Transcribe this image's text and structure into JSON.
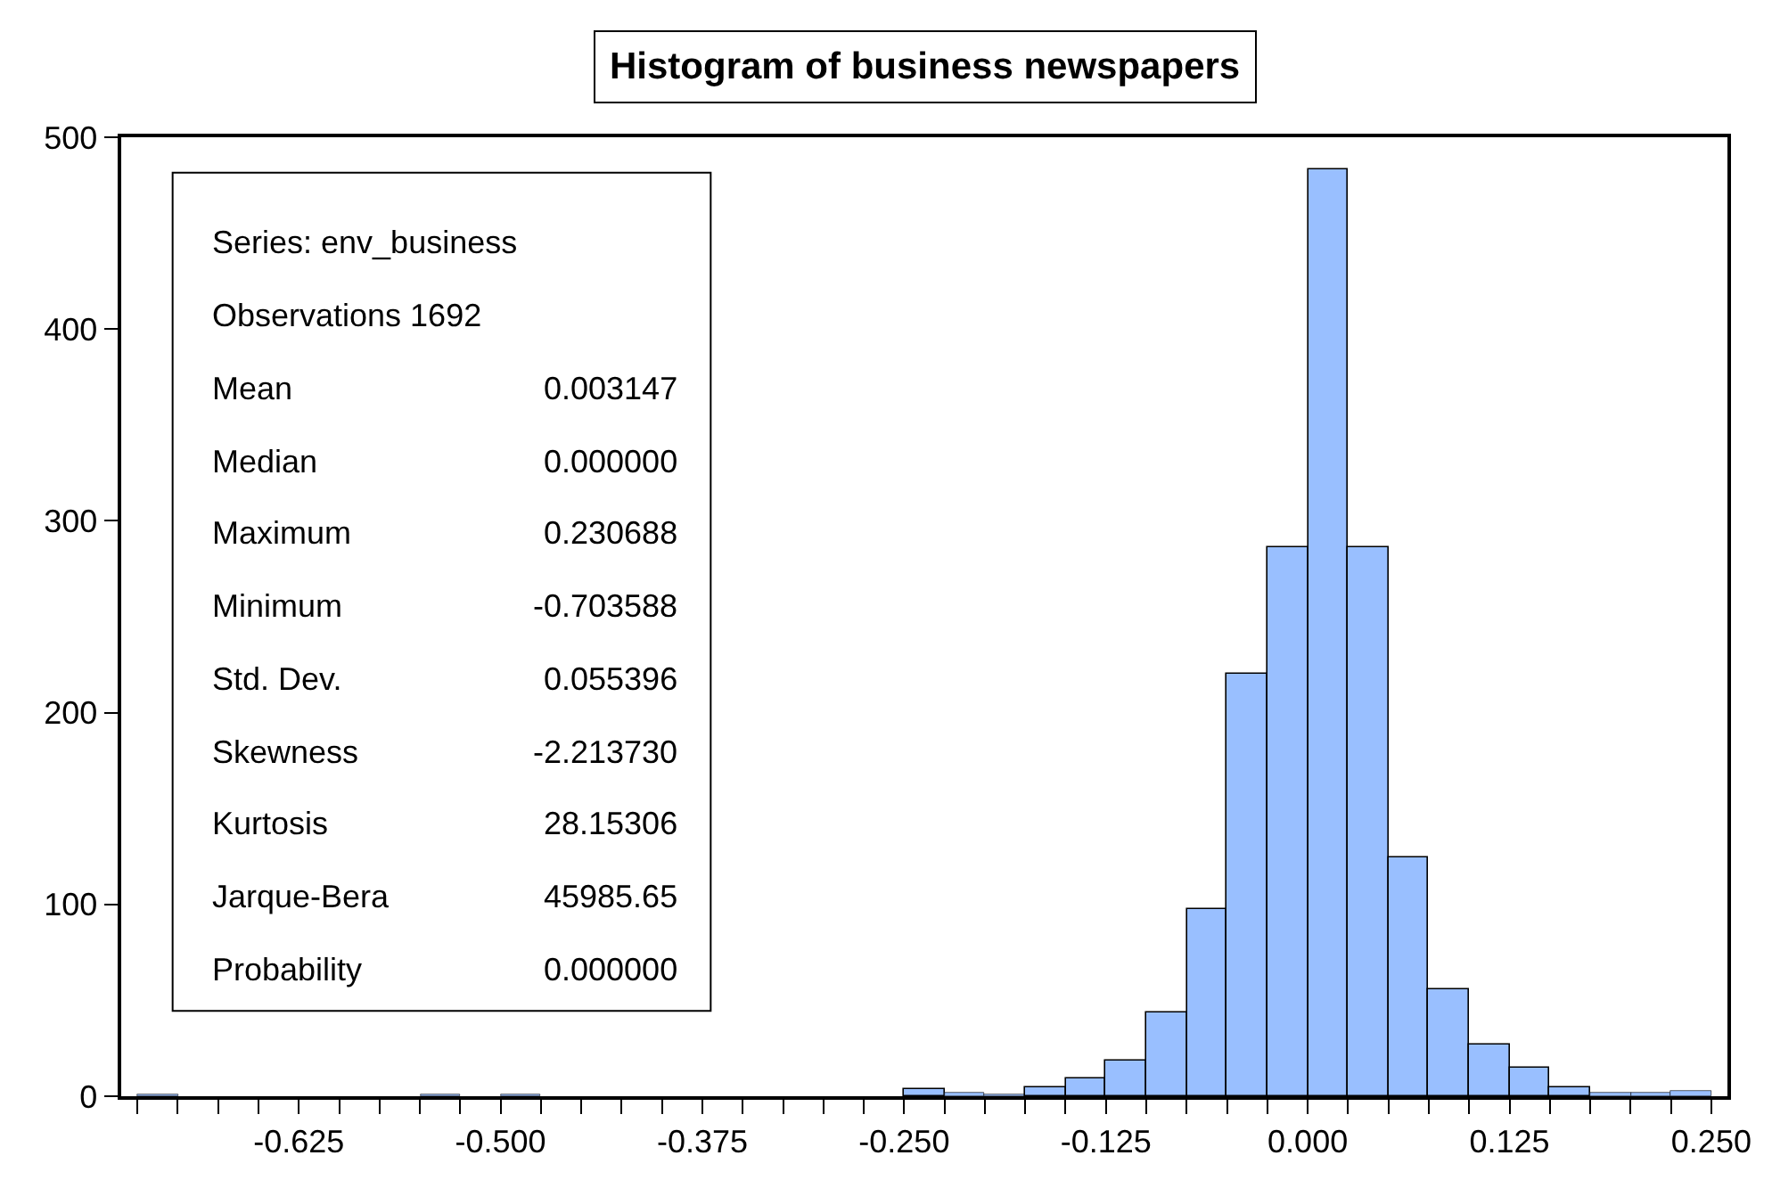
{
  "chart_data": {
    "type": "histogram",
    "title": "Histogram of business newspapers",
    "bins": [
      -0.725,
      -0.7,
      -0.675,
      -0.65,
      -0.625,
      -0.6,
      -0.575,
      -0.55,
      -0.525,
      -0.5,
      -0.475,
      -0.45,
      -0.425,
      -0.4,
      -0.375,
      -0.35,
      -0.325,
      -0.3,
      -0.275,
      -0.25,
      -0.225,
      -0.2,
      -0.175,
      -0.15,
      -0.125,
      -0.1,
      -0.075,
      -0.05,
      -0.025,
      0,
      0.025,
      0.05,
      0.075,
      0.1,
      0.125,
      0.15,
      0.175,
      0.2,
      0.225,
      0.25
    ],
    "values": [
      1,
      0,
      0,
      0,
      0,
      0,
      0,
      1,
      0,
      1,
      0,
      0,
      0,
      0,
      0,
      0,
      0,
      0,
      0,
      4,
      2,
      1,
      5,
      9,
      19,
      44,
      98,
      220,
      286,
      483,
      286,
      125,
      56,
      27,
      15,
      5,
      2,
      2,
      3
    ],
    "color": "#99bfff",
    "xlim": [
      -0.735,
      0.26
    ],
    "xticks": [
      {
        "value": -0.725,
        "label": null
      },
      {
        "value": -0.7,
        "label": null
      },
      {
        "value": -0.675,
        "label": null
      },
      {
        "value": -0.65,
        "label": null
      },
      -0.625,
      {
        "value": -0.6,
        "label": null
      },
      {
        "value": -0.575,
        "label": null
      },
      {
        "value": -0.55,
        "label": null
      },
      {
        "value": -0.525,
        "label": null
      },
      {
        "value": -0.5,
        "label": "-0.500"
      },
      {
        "value": -0.475,
        "label": null
      },
      {
        "value": -0.45,
        "label": null
      },
      {
        "value": -0.425,
        "label": null
      },
      {
        "value": -0.4,
        "label": null
      },
      -0.375,
      {
        "value": -0.35,
        "label": null
      },
      {
        "value": -0.325,
        "label": null
      },
      {
        "value": -0.3,
        "label": null
      },
      {
        "value": -0.275,
        "label": null
      },
      {
        "value": -0.25,
        "label": "-0.250"
      },
      {
        "value": -0.225,
        "label": null
      },
      {
        "value": -0.2,
        "label": null
      },
      {
        "value": -0.175,
        "label": null
      },
      {
        "value": -0.15,
        "label": null
      },
      -0.125,
      {
        "value": -0.1,
        "label": null
      },
      {
        "value": -0.075,
        "label": null
      },
      {
        "value": -0.05,
        "label": null
      },
      {
        "value": -0.025,
        "label": null
      },
      {
        "value": 0,
        "label": "0.000"
      },
      {
        "value": 0.025,
        "label": null
      },
      {
        "value": 0.05,
        "label": null
      },
      {
        "value": 0.075,
        "label": null
      },
      {
        "value": 0.1,
        "label": null
      },
      0.125,
      {
        "value": 0.15,
        "label": null
      },
      {
        "value": 0.175,
        "label": null
      },
      {
        "value": 0.2,
        "label": null
      },
      {
        "value": 0.225,
        "label": null
      },
      {
        "value": 0.25,
        "label": "0.250"
      }
    ],
    "ylim": [
      0,
      500
    ],
    "yticks": [
      0,
      100,
      200,
      300,
      400,
      500
    ],
    "annotations": [
      "Series: env_business",
      "Observations 1692",
      "Mean\t0.003147",
      "Median\t0.000000",
      "Maximum\t0.230688",
      "Minimum\t-0.703588",
      "Std. Dev.\t0.055396",
      "Skewness\t-2.213730",
      "Kurtosis\t28.15306",
      "Jarque-Bera\t45985.65",
      "Probability\t0.000000"
    ]
  }
}
